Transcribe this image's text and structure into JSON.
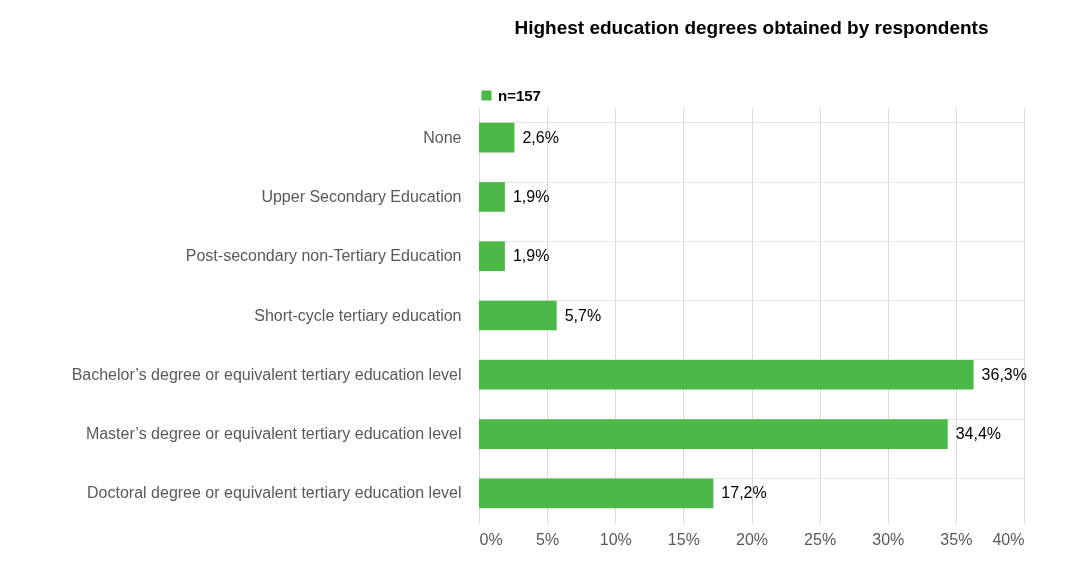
{
  "chart_data": {
    "type": "bar",
    "orientation": "horizontal",
    "title": "Highest education degrees obtained by respondents",
    "categories": [
      "None",
      "Upper Secondary Education",
      "Post-secondary non-Tertiary Education",
      "Short-cycle tertiary education",
      "Bachelor’s degree or equivalent tertiary education level",
      "Master’s degree or equivalent tertiary education level",
      "Doctoral degree or equivalent tertiary education level"
    ],
    "series": [
      {
        "name": "n=157",
        "color": "#4cb848",
        "values": [
          2.6,
          1.9,
          1.9,
          5.7,
          36.3,
          34.4,
          17.2
        ],
        "value_labels": [
          "2,6%",
          "1,9%",
          "1,9%",
          "5,7%",
          "36,3%",
          "34,4%",
          "17,2%"
        ]
      }
    ],
    "xlim": [
      0,
      40
    ],
    "xticks": [
      {
        "value": 0,
        "label": "0%"
      },
      {
        "value": 5,
        "label": "5%"
      },
      {
        "value": 10,
        "label": "10%"
      },
      {
        "value": 15,
        "label": "15%"
      },
      {
        "value": 20,
        "label": "20%"
      },
      {
        "value": 25,
        "label": "25%"
      },
      {
        "value": 30,
        "label": "30%"
      },
      {
        "value": 35,
        "label": "35%"
      },
      {
        "value": 40,
        "label": "40%"
      }
    ],
    "grid": true,
    "legend": "top"
  }
}
